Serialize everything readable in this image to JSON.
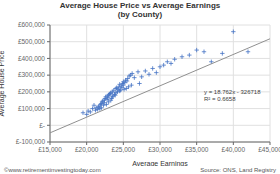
{
  "chart_data": {
    "type": "scatter",
    "title": "Average House Price vs Average Earnings",
    "subtitle": "(by County)",
    "xlabel": "Average Earnings",
    "ylabel": "Average House Price",
    "annotations": [
      "y = 18.762x - 326718",
      "R² = 0.6658"
    ],
    "footer": [
      "©www.retirementinvestingtoday.com",
      "Source: ONS, Land Registry"
    ],
    "grid": true,
    "xlim": [
      15000,
      45000
    ],
    "ylim": [
      -100000,
      600000
    ],
    "xticks": [
      {
        "value": 15000,
        "label": "£15,000"
      },
      {
        "value": 20000,
        "label": "£20,000"
      },
      {
        "value": 25000,
        "label": "£25,000"
      },
      {
        "value": 30000,
        "label": "£30,000"
      },
      {
        "value": 35000,
        "label": "£35,000"
      },
      {
        "value": 40000,
        "label": "£40,000"
      },
      {
        "value": 45000,
        "label": "£45,000"
      }
    ],
    "yticks": [
      {
        "value": -100000,
        "label": "£-100,000"
      },
      {
        "value": 0,
        "label": "£-"
      },
      {
        "value": 100000,
        "label": "£100,000"
      },
      {
        "value": 200000,
        "label": "£200,000"
      },
      {
        "value": 300000,
        "label": "£300,000"
      },
      {
        "value": 400000,
        "label": "£400,000"
      },
      {
        "value": 500000,
        "label": "£500,000"
      },
      {
        "value": 600000,
        "label": "£600,000"
      }
    ],
    "series": [
      {
        "type": "scatter",
        "marker": "plus",
        "color": "#4472C4",
        "x": [
          19500,
          20000,
          20200,
          20500,
          20800,
          21000,
          21200,
          21300,
          21500,
          21600,
          21700,
          21800,
          21900,
          22000,
          22000,
          22100,
          22200,
          22300,
          22400,
          22400,
          22500,
          22600,
          22700,
          22800,
          22800,
          22900,
          23000,
          23000,
          23100,
          23200,
          23300,
          23300,
          23400,
          23500,
          23500,
          23600,
          23700,
          23800,
          23900,
          24000,
          24000,
          24100,
          24200,
          24300,
          24400,
          24500,
          24500,
          24600,
          24700,
          24800,
          24900,
          25000,
          25000,
          25100,
          25200,
          25300,
          25400,
          25500,
          25600,
          25700,
          25800,
          26000,
          26100,
          26200,
          26500,
          27000,
          27200,
          27500,
          28000,
          28500,
          29000,
          29500,
          30000,
          30500,
          31000,
          31500,
          32000,
          33000,
          34000,
          35000,
          36000,
          37000,
          38500,
          40000,
          42000
        ],
        "values": [
          75000,
          65000,
          85000,
          80000,
          100000,
          120000,
          90000,
          105000,
          95000,
          110000,
          115000,
          100000,
          125000,
          130000,
          105000,
          140000,
          145000,
          120000,
          135000,
          150000,
          160000,
          170000,
          125000,
          155000,
          175000,
          165000,
          180000,
          140000,
          185000,
          190000,
          150000,
          195000,
          160000,
          200000,
          170000,
          175000,
          210000,
          185000,
          180000,
          220000,
          195000,
          225000,
          200000,
          215000,
          230000,
          205000,
          245000,
          210000,
          235000,
          225000,
          250000,
          240000,
          260000,
          215000,
          255000,
          270000,
          220000,
          265000,
          280000,
          230000,
          295000,
          300000,
          240000,
          310000,
          285000,
          320000,
          250000,
          290000,
          325000,
          305000,
          340000,
          315000,
          350000,
          360000,
          380000,
          370000,
          395000,
          410000,
          420000,
          450000,
          440000,
          380000,
          430000,
          560000,
          440000
        ]
      },
      {
        "type": "line",
        "line_style": "solid",
        "color": "#909090",
        "x": [
          15000,
          45000
        ],
        "values": [
          -45288,
          517572
        ]
      }
    ]
  }
}
